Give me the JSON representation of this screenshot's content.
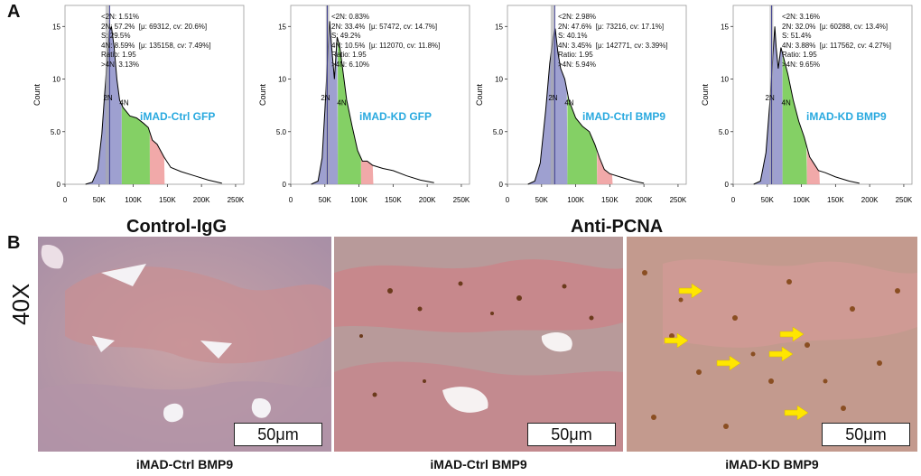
{
  "panels": {
    "a": "A",
    "b": "B"
  },
  "colors": {
    "g1": "#8d8fc8",
    "s": "#6ec84a",
    "g2": "#ee9a9a",
    "label": "#29a9df",
    "arrow": "#ffe600"
  },
  "chart_data": [
    {
      "type": "histogram",
      "title": "iMAD-Ctrl GFP",
      "ylabel": "Count",
      "xticks": [
        "0",
        "50K",
        "100K",
        "150K",
        "200K",
        "250K"
      ],
      "yticks": [
        "0",
        "5.0",
        "10",
        "15"
      ],
      "xlim": [
        0,
        262000
      ],
      "ylim": [
        0,
        17
      ],
      "g1_mean": 69312,
      "g2_mean": 135158,
      "sub2n_marker": 62000,
      "peak_label": "2N",
      "peak_label2": "4N",
      "curve": [
        [
          30000,
          0
        ],
        [
          40000,
          0.2
        ],
        [
          48000,
          1.4
        ],
        [
          54000,
          4.8
        ],
        [
          58000,
          8.5
        ],
        [
          62000,
          12
        ],
        [
          65000,
          14.5
        ],
        [
          68000,
          15
        ],
        [
          72000,
          13
        ],
        [
          76000,
          10
        ],
        [
          80000,
          8
        ],
        [
          85000,
          7.3
        ],
        [
          95000,
          6.5
        ],
        [
          105000,
          6.3
        ],
        [
          115000,
          5.8
        ],
        [
          122000,
          5.4
        ],
        [
          128000,
          4.2
        ],
        [
          135000,
          3.8
        ],
        [
          145000,
          2.6
        ],
        [
          155000,
          1.6
        ],
        [
          170000,
          1.2
        ],
        [
          190000,
          0.8
        ],
        [
          210000,
          0.4
        ],
        [
          230000,
          0.1
        ]
      ],
      "stats": [
        "<2N: 1.51%",
        "2N: 57.2%  [μ: 69312, cv: 20.6%]",
        "S: 29.5%",
        "4N: 8.59%  [μ: 135158, cv: 7.49%]",
        "Ratio: 1.95",
        ">4N: 3.13%"
      ]
    },
    {
      "type": "histogram",
      "title": "iMAD-KD GFP",
      "ylabel": "Count",
      "xticks": [
        "0",
        "50K",
        "100K",
        "150K",
        "200K",
        "250K"
      ],
      "yticks": [
        "0",
        "5.0",
        "10",
        "15"
      ],
      "xlim": [
        0,
        262000
      ],
      "ylim": [
        0,
        17
      ],
      "g1_mean": 57472,
      "g2_mean": 112070,
      "sub2n_marker": 54000,
      "peak_label": "2N",
      "peak_label2": "4N",
      "curve": [
        [
          30000,
          0
        ],
        [
          40000,
          0.3
        ],
        [
          46000,
          2.5
        ],
        [
          50000,
          7
        ],
        [
          54000,
          12
        ],
        [
          57000,
          15.5
        ],
        [
          60000,
          13
        ],
        [
          64000,
          10
        ],
        [
          68000,
          14
        ],
        [
          72000,
          13
        ],
        [
          76000,
          11
        ],
        [
          82000,
          8
        ],
        [
          90000,
          5.5
        ],
        [
          98000,
          3.2
        ],
        [
          105000,
          2.2
        ],
        [
          112000,
          2.2
        ],
        [
          120000,
          1.8
        ],
        [
          135000,
          1.5
        ],
        [
          150000,
          1.3
        ],
        [
          170000,
          0.8
        ],
        [
          190000,
          0.4
        ],
        [
          210000,
          0.15
        ]
      ],
      "stats": [
        "<2N: 0.83%",
        "2N: 33.4%  [μ: 57472, cv: 14.7%]",
        "S: 49.2%",
        "4N: 10.5%  [μ: 112070, cv: 11.8%]",
        "Ratio: 1.95",
        ">4N: 6.10%"
      ]
    },
    {
      "type": "histogram",
      "title": "iMAD-Ctrl BMP9",
      "ylabel": "Count",
      "xticks": [
        "0",
        "50K",
        "100K",
        "150K",
        "200K",
        "250K"
      ],
      "yticks": [
        "0",
        "5.0",
        "10",
        "15"
      ],
      "xlim": [
        0,
        262000
      ],
      "ylim": [
        0,
        17
      ],
      "g1_mean": 73216,
      "g2_mean": 142771,
      "sub2n_marker": 66000,
      "peak_label": "2N",
      "peak_label2": "4N",
      "curve": [
        [
          30000,
          0
        ],
        [
          40000,
          0.3
        ],
        [
          48000,
          2
        ],
        [
          56000,
          7
        ],
        [
          62000,
          11.5
        ],
        [
          67000,
          14
        ],
        [
          70000,
          14.8
        ],
        [
          74000,
          12.5
        ],
        [
          78000,
          11
        ],
        [
          84000,
          10
        ],
        [
          90000,
          8
        ],
        [
          100000,
          6.3
        ],
        [
          110000,
          5.5
        ],
        [
          120000,
          5
        ],
        [
          128000,
          3.8
        ],
        [
          135000,
          2.5
        ],
        [
          142000,
          1.4
        ],
        [
          150000,
          1
        ],
        [
          165000,
          0.7
        ],
        [
          185000,
          0.3
        ],
        [
          200000,
          0.1
        ]
      ],
      "stats": [
        "<2N: 2.98%",
        "2N: 47.6%  [μ: 73216, cv: 17.1%]",
        "S: 40.1%",
        "4N: 3.45%  [μ: 142771, cv: 3.39%]",
        "Ratio: 1.95",
        ">4N: 5.94%"
      ]
    },
    {
      "type": "histogram",
      "title": "iMAD-KD BMP9",
      "ylabel": "Count",
      "xticks": [
        "0",
        "50K",
        "100K",
        "150K",
        "200K",
        "250K"
      ],
      "yticks": [
        "0",
        "5.0",
        "10",
        "15"
      ],
      "xlim": [
        0,
        262000
      ],
      "ylim": [
        0,
        17
      ],
      "g1_mean": 60288,
      "g2_mean": 117562,
      "sub2n_marker": 56000,
      "peak_label": "2N",
      "peak_label2": "4N",
      "curve": [
        [
          30000,
          0
        ],
        [
          40000,
          0.3
        ],
        [
          48000,
          3
        ],
        [
          54000,
          8
        ],
        [
          58000,
          12
        ],
        [
          61000,
          15
        ],
        [
          63000,
          13
        ],
        [
          66000,
          11
        ],
        [
          70000,
          13
        ],
        [
          74000,
          12
        ],
        [
          80000,
          10.5
        ],
        [
          88000,
          8
        ],
        [
          96000,
          6
        ],
        [
          104000,
          4.5
        ],
        [
          112000,
          2.6
        ],
        [
          118000,
          2
        ],
        [
          125000,
          1.3
        ],
        [
          135000,
          1.1
        ],
        [
          150000,
          0.7
        ],
        [
          170000,
          0.3
        ],
        [
          185000,
          0.1
        ]
      ],
      "stats": [
        "<2N: 3.16%",
        "2N: 32.0%  [μ: 60288, cv: 13.4%]",
        "S: 51.4%",
        "4N: 3.88%  [μ: 117562, cv: 4.27%]",
        "Ratio: 1.95",
        ">4N: 9.65%"
      ]
    }
  ],
  "section_b": {
    "title_left": "Control-IgG",
    "title_right": "Anti-PCNA",
    "magnification": "40X",
    "scale_bar": "50μm",
    "captions": [
      "iMAD-Ctrl BMP9",
      "iMAD-Ctrl BMP9",
      "iMAD-KD BMP9"
    ],
    "arrow_count": 6
  }
}
